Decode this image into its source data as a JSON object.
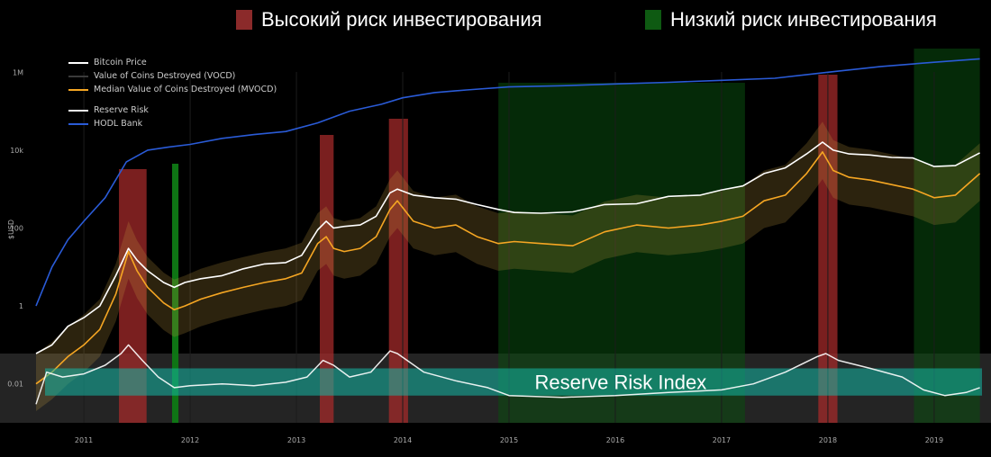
{
  "top_legend": {
    "high_risk": {
      "label": "Высокий риск инвестирования",
      "color": "#8b2a2a"
    },
    "low_risk": {
      "label": "Низкий риск инвестирования",
      "color": "#0e5a12"
    }
  },
  "legend": {
    "bitcoin_price": "Bitcoin Price",
    "vocd": "Value of Coins Destroyed (VOCD)",
    "mvocd": "Median Value of Coins Destroyed (MVOCD)",
    "reserve_risk": "Reserve Risk",
    "hodl_bank": "HODL Bank"
  },
  "index_label": "Reserve Risk Index",
  "chart_data": {
    "type": "line",
    "ylabel": "$USD",
    "y_scale": "log",
    "yticks": [
      {
        "value": 1000000,
        "label": "1M"
      },
      {
        "value": 10000,
        "label": "10k"
      },
      {
        "value": 100,
        "label": "100"
      },
      {
        "value": 1,
        "label": "1"
      },
      {
        "value": 0.01,
        "label": "0.01"
      }
    ],
    "xticks": [
      2011,
      2012,
      2013,
      2014,
      2015,
      2016,
      2017,
      2018,
      2019
    ],
    "xlim": [
      2010.55,
      2019.45
    ],
    "ylim": [
      0.001,
      5000000
    ],
    "colors": {
      "bitcoin_price": "#ffffff",
      "vocd": "#c8a040",
      "mvocd": "#f5a623",
      "reserve_risk": "#ffffff",
      "hodl_bank": "#2a5bd7",
      "index_band": "#14b8a6"
    },
    "high_risk_zones": [
      [
        2011.33,
        2011.59
      ],
      [
        2013.22,
        2013.35
      ],
      [
        2013.87,
        2014.05
      ],
      [
        2017.91,
        2018.09
      ]
    ],
    "low_risk_zones": [
      [
        2011.83,
        2011.89
      ],
      [
        2014.9,
        2017.22
      ],
      [
        2018.81,
        2019.43
      ]
    ],
    "series": [
      {
        "name": "Bitcoin Price",
        "x": [
          2010.55,
          2010.7,
          2010.85,
          2011.0,
          2011.15,
          2011.3,
          2011.42,
          2011.5,
          2011.6,
          2011.75,
          2011.85,
          2011.95,
          2012.1,
          2012.3,
          2012.5,
          2012.7,
          2012.9,
          2013.05,
          2013.2,
          2013.28,
          2013.35,
          2013.45,
          2013.6,
          2013.75,
          2013.88,
          2013.95,
          2014.1,
          2014.3,
          2014.5,
          2014.7,
          2014.9,
          2015.05,
          2015.3,
          2015.6,
          2015.9,
          2016.2,
          2016.5,
          2016.8,
          2017.0,
          2017.2,
          2017.4,
          2017.6,
          2017.8,
          2017.95,
          2018.05,
          2018.2,
          2018.4,
          2018.6,
          2018.8,
          2019.0,
          2019.2,
          2019.43
        ],
        "values": [
          0.06,
          0.1,
          0.3,
          0.5,
          1.0,
          6,
          30,
          15,
          8,
          4,
          3,
          4,
          5,
          6,
          9,
          12,
          13,
          20,
          90,
          150,
          100,
          110,
          120,
          200,
          800,
          1000,
          700,
          600,
          550,
          400,
          300,
          250,
          240,
          260,
          400,
          420,
          650,
          700,
          950,
          1200,
          2500,
          3500,
          8000,
          16000,
          10000,
          8000,
          7500,
          6500,
          6300,
          3800,
          4000,
          8500
        ]
      },
      {
        "name": "Median Value of Coins Destroyed (MVOCD)",
        "x": [
          2010.55,
          2010.7,
          2010.85,
          2011.0,
          2011.15,
          2011.3,
          2011.42,
          2011.5,
          2011.6,
          2011.75,
          2011.85,
          2011.95,
          2012.1,
          2012.3,
          2012.5,
          2012.7,
          2012.9,
          2013.05,
          2013.2,
          2013.28,
          2013.35,
          2013.45,
          2013.6,
          2013.75,
          2013.88,
          2013.95,
          2014.1,
          2014.3,
          2014.5,
          2014.7,
          2014.9,
          2015.05,
          2015.3,
          2015.6,
          2015.9,
          2016.2,
          2016.5,
          2016.8,
          2017.0,
          2017.2,
          2017.4,
          2017.6,
          2017.8,
          2017.95,
          2018.05,
          2018.2,
          2018.4,
          2018.6,
          2018.8,
          2019.0,
          2019.2,
          2019.43
        ],
        "values": [
          0.01,
          0.02,
          0.05,
          0.1,
          0.25,
          2,
          25,
          8,
          3,
          1.2,
          0.8,
          1.0,
          1.5,
          2.2,
          3,
          4,
          5,
          7,
          40,
          60,
          30,
          25,
          30,
          60,
          300,
          500,
          150,
          100,
          120,
          60,
          40,
          45,
          40,
          35,
          80,
          120,
          100,
          120,
          150,
          200,
          500,
          700,
          2500,
          9000,
          3000,
          2000,
          1700,
          1300,
          1000,
          600,
          700,
          2500
        ]
      },
      {
        "name": "HODL Bank",
        "x": [
          2010.55,
          2010.7,
          2010.85,
          2011.0,
          2011.2,
          2011.4,
          2011.6,
          2011.8,
          2012.0,
          2012.3,
          2012.6,
          2012.9,
          2013.2,
          2013.5,
          2013.8,
          2014.0,
          2014.3,
          2014.6,
          2015.0,
          2015.5,
          2016.0,
          2016.5,
          2017.0,
          2017.5,
          2018.0,
          2018.5,
          2019.0,
          2019.43
        ],
        "values": [
          1,
          10,
          50,
          150,
          600,
          5000,
          10000,
          12000,
          14000,
          20000,
          25000,
          30000,
          50000,
          100000,
          150000,
          220000,
          300000,
          350000,
          420000,
          450000,
          500000,
          550000,
          620000,
          700000,
          1000000,
          1400000,
          1800000,
          2200000
        ]
      }
    ],
    "reserve_risk": {
      "name": "Reserve Risk",
      "x": [
        2010.55,
        2010.65,
        2010.8,
        2011.0,
        2011.2,
        2011.35,
        2011.42,
        2011.55,
        2011.7,
        2011.85,
        2012.0,
        2012.3,
        2012.6,
        2012.9,
        2013.1,
        2013.25,
        2013.35,
        2013.5,
        2013.7,
        2013.88,
        2013.95,
        2014.2,
        2014.5,
        2014.8,
        2015.0,
        2015.5,
        2016.0,
        2016.5,
        2017.0,
        2017.3,
        2017.6,
        2017.9,
        2017.98,
        2018.1,
        2018.4,
        2018.7,
        2018.9,
        2019.1,
        2019.3,
        2019.43
      ],
      "values": [
        0.003,
        0.02,
        0.015,
        0.018,
        0.03,
        0.06,
        0.1,
        0.04,
        0.015,
        0.008,
        0.009,
        0.01,
        0.009,
        0.011,
        0.015,
        0.04,
        0.03,
        0.015,
        0.02,
        0.07,
        0.06,
        0.02,
        0.012,
        0.008,
        0.005,
        0.0045,
        0.005,
        0.006,
        0.007,
        0.01,
        0.02,
        0.05,
        0.06,
        0.04,
        0.025,
        0.015,
        0.007,
        0.005,
        0.006,
        0.008
      ]
    },
    "index_band": [
      0.005,
      0.025
    ]
  }
}
